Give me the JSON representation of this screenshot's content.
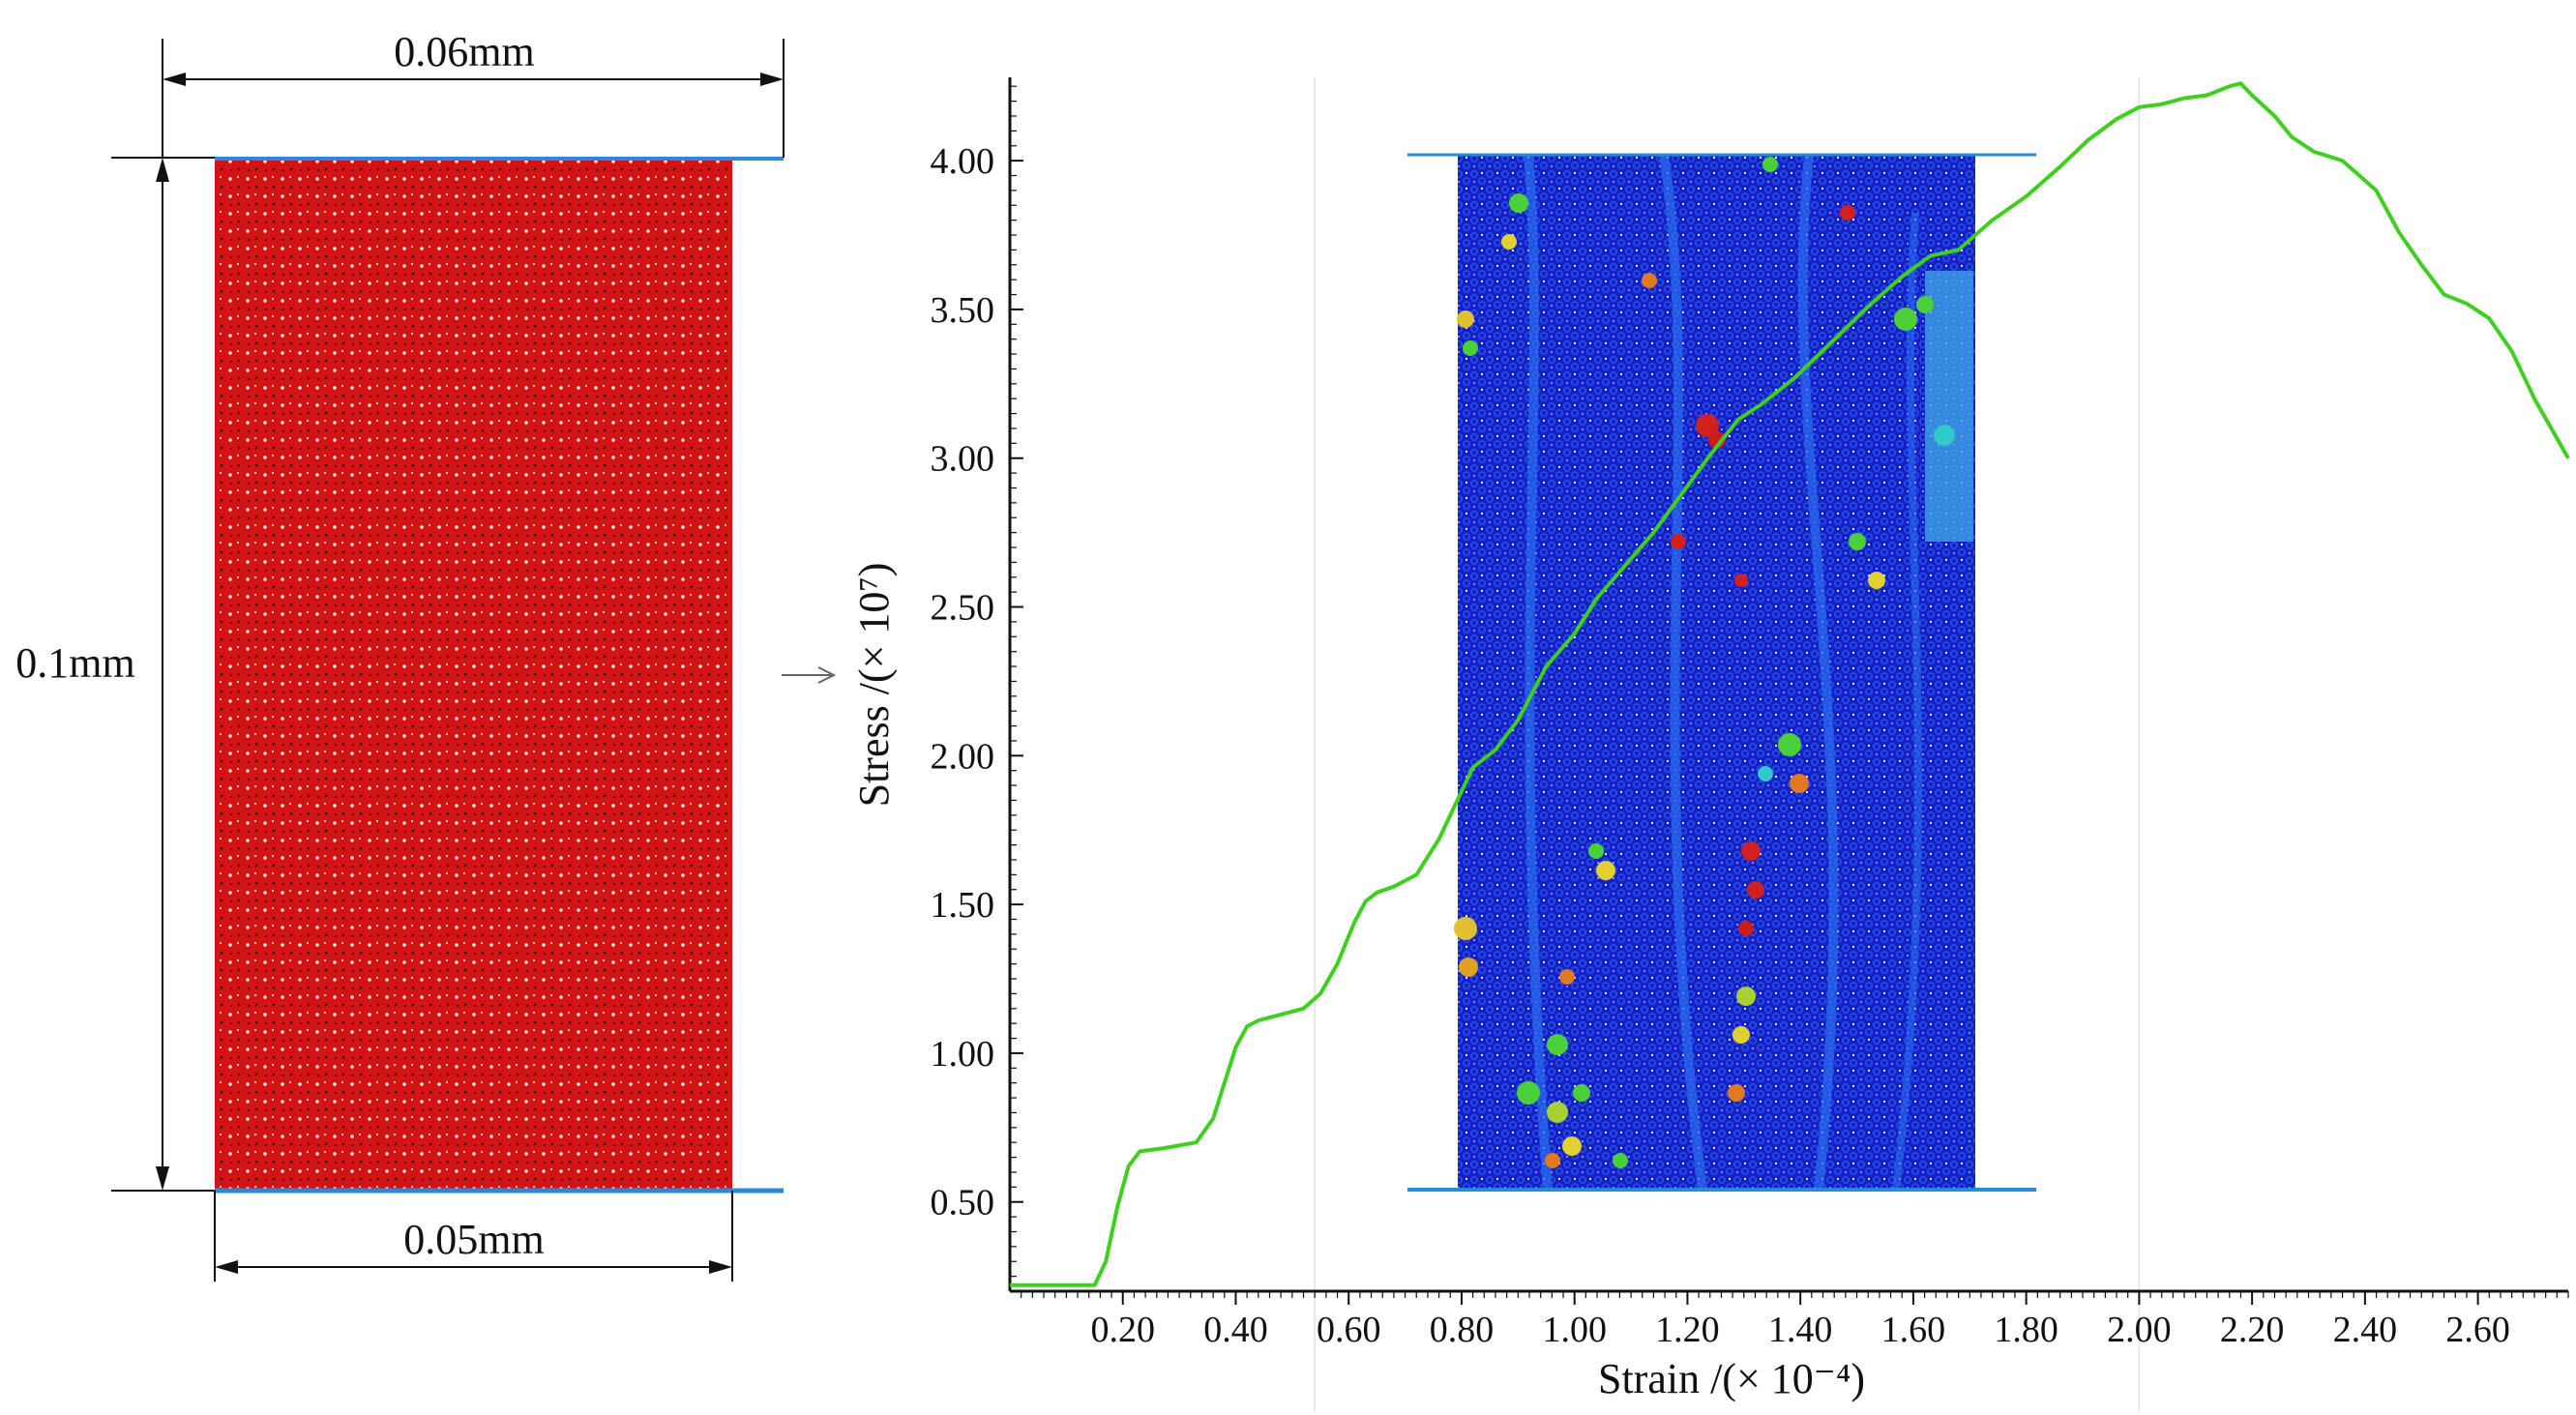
{
  "specimen": {
    "width_label": "0.06mm",
    "height_label": "0.1mm",
    "base_width_label": "0.05mm",
    "fill_color": "#d41414",
    "platen_color": "#2a8ad8"
  },
  "chart_data": {
    "type": "line",
    "xlabel": "Strain /(× 10⁻⁴)",
    "ylabel": "Stress /(× 10⁷)",
    "xlim": [
      0,
      2.76
    ],
    "ylim": [
      0.2,
      4.28
    ],
    "xticks": [
      "0.20",
      "0.40",
      "0.60",
      "0.80",
      "1.00",
      "1.20",
      "1.40",
      "1.60",
      "1.80",
      "2.00",
      "2.20",
      "2.40",
      "2.60"
    ],
    "yticks": [
      "0.50",
      "1.00",
      "1.50",
      "2.00",
      "2.50",
      "3.00",
      "3.50",
      "4.00"
    ],
    "grid_x": [
      0.54,
      2.0
    ],
    "line_color": "#3ecf1f",
    "series": [
      {
        "x": [
          0.0,
          0.08,
          0.15,
          0.17,
          0.19,
          0.21,
          0.23,
          0.27,
          0.33,
          0.36,
          0.38,
          0.4,
          0.42,
          0.44,
          0.48,
          0.52,
          0.55,
          0.58,
          0.61,
          0.63,
          0.65,
          0.68,
          0.72,
          0.76,
          0.79,
          0.82,
          0.86,
          0.9,
          0.95,
          1.0,
          1.04,
          1.09,
          1.14,
          1.19,
          1.24,
          1.29,
          1.33,
          1.39,
          1.45,
          1.52,
          1.58,
          1.63,
          1.68,
          1.74,
          1.8,
          1.86,
          1.91,
          1.96,
          2.0,
          2.04,
          2.08,
          2.12,
          2.16,
          2.18,
          2.2,
          2.24,
          2.27,
          2.31,
          2.36,
          2.42,
          2.46,
          2.5,
          2.54,
          2.58,
          2.62,
          2.66,
          2.7,
          2.73,
          2.76
        ],
        "y": [
          0.22,
          0.22,
          0.22,
          0.3,
          0.48,
          0.62,
          0.67,
          0.68,
          0.7,
          0.78,
          0.9,
          1.02,
          1.09,
          1.11,
          1.13,
          1.15,
          1.2,
          1.3,
          1.44,
          1.51,
          1.54,
          1.56,
          1.6,
          1.72,
          1.84,
          1.96,
          2.02,
          2.12,
          2.3,
          2.41,
          2.53,
          2.64,
          2.75,
          2.88,
          3.01,
          3.13,
          3.18,
          3.27,
          3.38,
          3.51,
          3.61,
          3.68,
          3.7,
          3.8,
          3.88,
          3.98,
          4.07,
          4.14,
          4.18,
          4.19,
          4.21,
          4.22,
          4.25,
          4.26,
          4.22,
          4.15,
          4.08,
          4.03,
          4.0,
          3.9,
          3.76,
          3.65,
          3.55,
          3.52,
          3.47,
          3.36,
          3.2,
          3.1,
          3.0
        ]
      }
    ]
  }
}
